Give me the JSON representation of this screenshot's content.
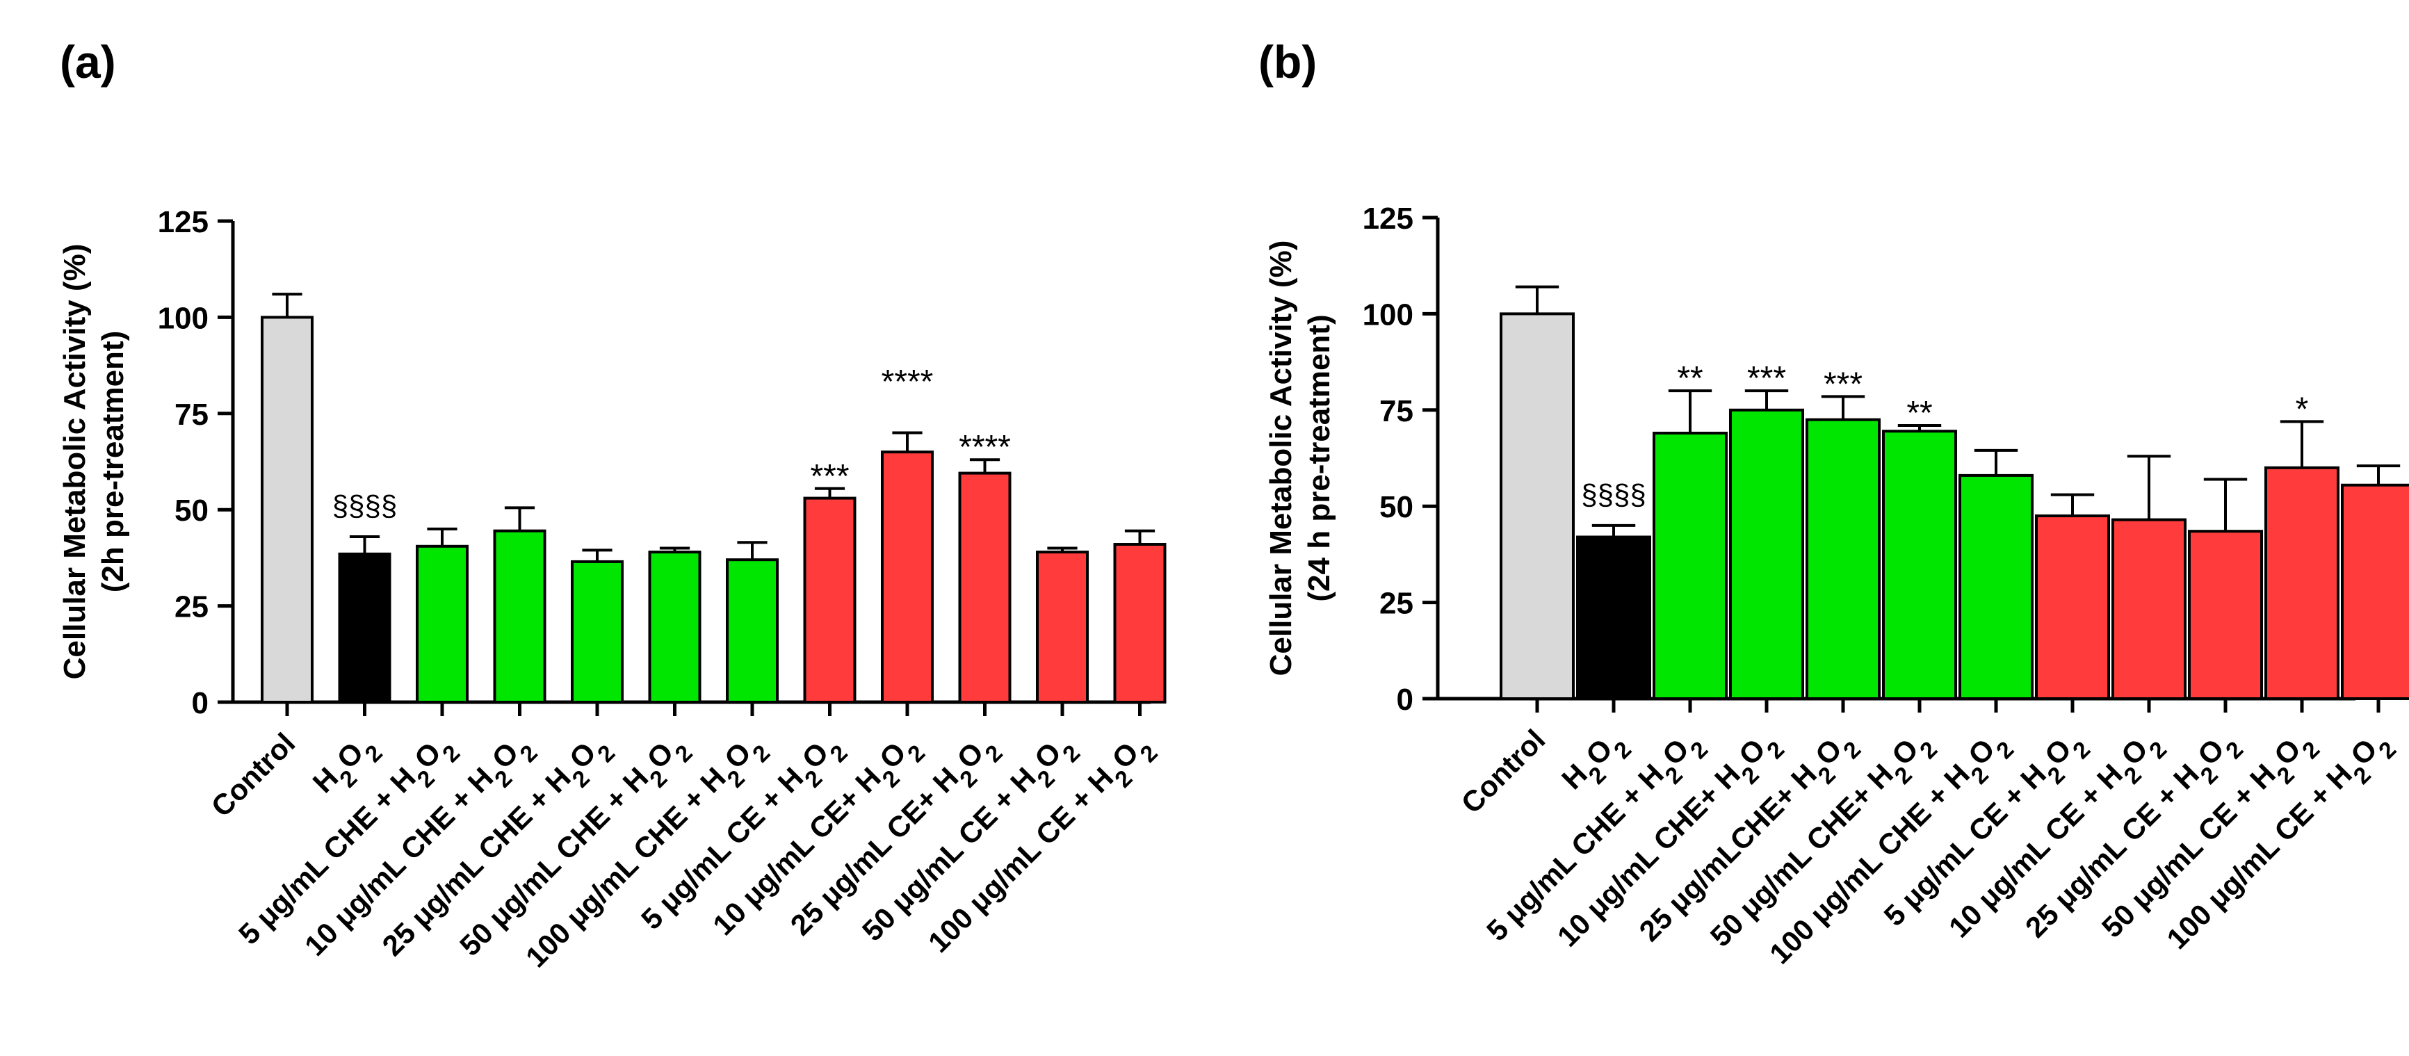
{
  "chart_data": [
    {
      "panel_label": "(a)",
      "type": "bar",
      "ylabel_line1": "Cellular Metabolic Activity (%)",
      "ylabel_line2": "(2h pre-treatment)",
      "ylim": [
        0,
        125
      ],
      "yticks": [
        "0",
        "25",
        "50",
        "75",
        "100",
        "125"
      ],
      "categories": [
        "Control",
        "H2O2",
        "5 μg/mL CHE + H2O2",
        "10 μg/mL CHE + H2O2",
        "25 μg/mL CHE + H2O2",
        "50 μg/mL CHE + H2O2",
        "100 μg/mL CHE + H2O2",
        "5 μg/mL CE + H2O2",
        "10 μg/mL CE+ H2O2",
        "25 μg/mL CE+ H2O2",
        "50 μg/mL CE + H2O2",
        "100 μg/mL CE + H2O2"
      ],
      "values": [
        100,
        38.5,
        40.5,
        44.5,
        36.5,
        39,
        37,
        53,
        65,
        59.5,
        39,
        41
      ],
      "errors": [
        6,
        4.5,
        4.5,
        6,
        3,
        1,
        4.5,
        2.5,
        5,
        3.5,
        1,
        3.5
      ],
      "colors": [
        "#d9d9d9",
        "#000000",
        "#00e600",
        "#00e600",
        "#00e600",
        "#00e600",
        "#00e600",
        "#ff3b3b",
        "#ff3b3b",
        "#ff3b3b",
        "#ff3b3b",
        "#ff3b3b"
      ],
      "annotations": [
        "",
        "§§§§",
        "",
        "",
        "",
        "",
        "",
        "***",
        "****",
        "****",
        "",
        ""
      ],
      "annotation_offsets": [
        0,
        0,
        0,
        0,
        0,
        0,
        0,
        0,
        10,
        0,
        0,
        0
      ]
    },
    {
      "panel_label": "(b)",
      "type": "bar",
      "ylabel_line1": "Cellular Metabolic Activity (%)",
      "ylabel_line2": "(24 h pre-treatment)",
      "ylim": [
        0,
        125
      ],
      "yticks": [
        "0",
        "25",
        "50",
        "75",
        "100",
        "125"
      ],
      "categories": [
        "Control",
        "H2O2",
        "5 μg/mL CHE + H2O2",
        "10 μg/mL CHE+ H2O2",
        "25 μg/mLCHE+ H2O2",
        "50 μg/mL CHE+ H2O2",
        "100 μg/mL CHE + H2O2",
        "5 μg/mL CE + H2O2",
        "10 μg/mL CE  + H2O2",
        "25 μg/mL CE  + H2O2",
        "50 μg/mL CE + H2O2",
        "100 μg/mL CE + H2O2"
      ],
      "values": [
        100,
        42,
        69,
        75,
        72.5,
        69.5,
        58,
        47.5,
        46.5,
        43.5,
        60,
        55.5
      ],
      "errors": [
        7,
        3,
        11,
        5,
        6,
        1.5,
        6.5,
        5.5,
        16.5,
        13.5,
        12,
        5
      ],
      "colors": [
        "#d9d9d9",
        "#000000",
        "#00e600",
        "#00e600",
        "#00e600",
        "#00e600",
        "#00e600",
        "#ff3b3b",
        "#ff3b3b",
        "#ff3b3b",
        "#ff3b3b",
        "#ff3b3b"
      ],
      "annotations": [
        "",
        "§§§§",
        "**",
        "***",
        "***",
        "**",
        "",
        "",
        "",
        "",
        "*",
        ""
      ],
      "annotation_offsets": [
        0,
        0,
        0,
        0,
        0,
        0,
        0,
        0,
        0,
        0,
        0,
        0
      ]
    }
  ]
}
